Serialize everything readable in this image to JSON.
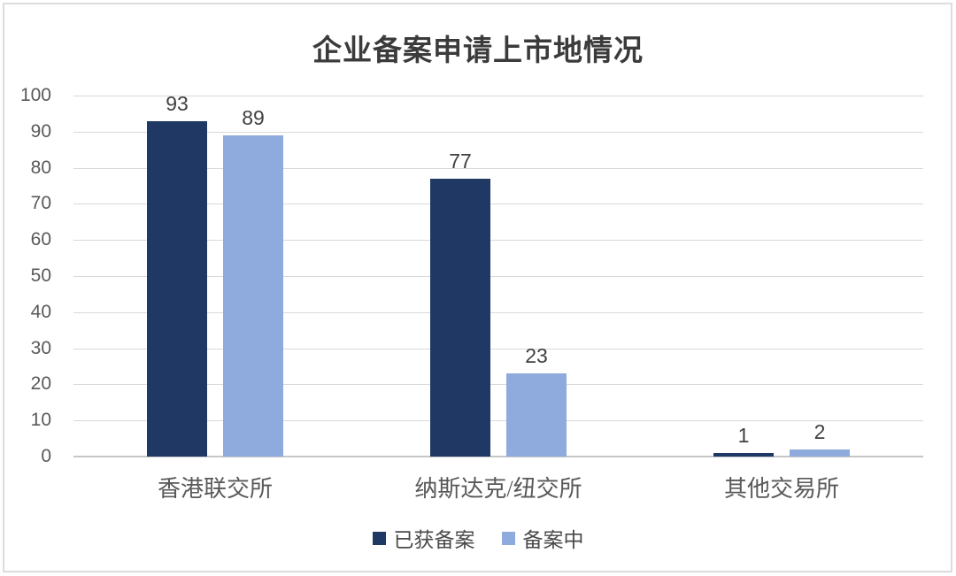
{
  "title": "企业备案申请上市地情况",
  "colors": {
    "series_registered": "#1F3864",
    "series_in_progress": "#8FAADC",
    "gridline": "#D9D9D9",
    "axis_baseline": "#C6C6C6",
    "tick_label": "#595959",
    "data_label": "#404040",
    "title_text": "#3B3B3B",
    "frame_border": "#DCDCDC"
  },
  "chart_data": {
    "type": "bar",
    "title": "企业备案申请上市地情况",
    "categories": [
      "香港联交所",
      "纳斯达克/纽交所",
      "其他交易所"
    ],
    "series": [
      {
        "name": "已获备案",
        "color": "#1F3864",
        "values": [
          93,
          77,
          1
        ]
      },
      {
        "name": "备案中",
        "color": "#8FAADC",
        "values": [
          89,
          23,
          2
        ]
      }
    ],
    "xlabel": "",
    "ylabel": "",
    "ylim": [
      0,
      100
    ],
    "yticks": [
      0,
      10,
      20,
      30,
      40,
      50,
      60,
      70,
      80,
      90,
      100
    ],
    "grid": true,
    "data_labels": true,
    "legend_position": "bottom"
  }
}
